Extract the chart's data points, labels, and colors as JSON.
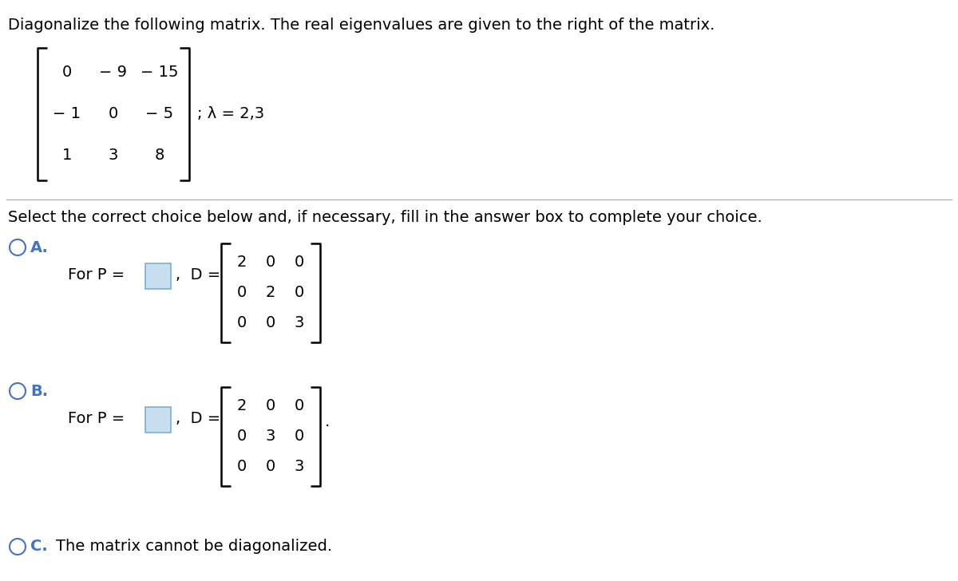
{
  "title_text": "Diagonalize the following matrix. The real eigenvalues are given to the right of the matrix.",
  "matrix_rows": [
    [
      "0",
      "− 9",
      "− 15"
    ],
    [
      "− 1",
      "0",
      "− 5"
    ],
    [
      "1",
      "3",
      "8"
    ]
  ],
  "eigenvalues_text": "; λ = 2,3",
  "separator_text": "Select the correct choice below and, if necessary, fill in the answer box to complete your choice.",
  "choice_A_label": "A.",
  "choice_A_text": "For P =",
  "choice_A_D": [
    [
      "2",
      "0",
      "0"
    ],
    [
      "0",
      "2",
      "0"
    ],
    [
      "0",
      "0",
      "3"
    ]
  ],
  "choice_B_label": "B.",
  "choice_B_text": "For P =",
  "choice_B_D": [
    [
      "2",
      "0",
      "0"
    ],
    [
      "0",
      "3",
      "0"
    ],
    [
      "0",
      "0",
      "3"
    ]
  ],
  "choice_C_label": "C.",
  "choice_C_text": "The matrix cannot be diagonalized.",
  "bg_color": "#ffffff",
  "text_color": "#000000",
  "box_fill_color": "#c8dff0",
  "box_border_color": "#7ab0d4",
  "font_size_title": 14,
  "font_size_body": 14,
  "font_size_matrix": 14,
  "label_color_A": "#4472c4",
  "label_color_B": "#4472c4",
  "label_color_C": "#4472c4"
}
